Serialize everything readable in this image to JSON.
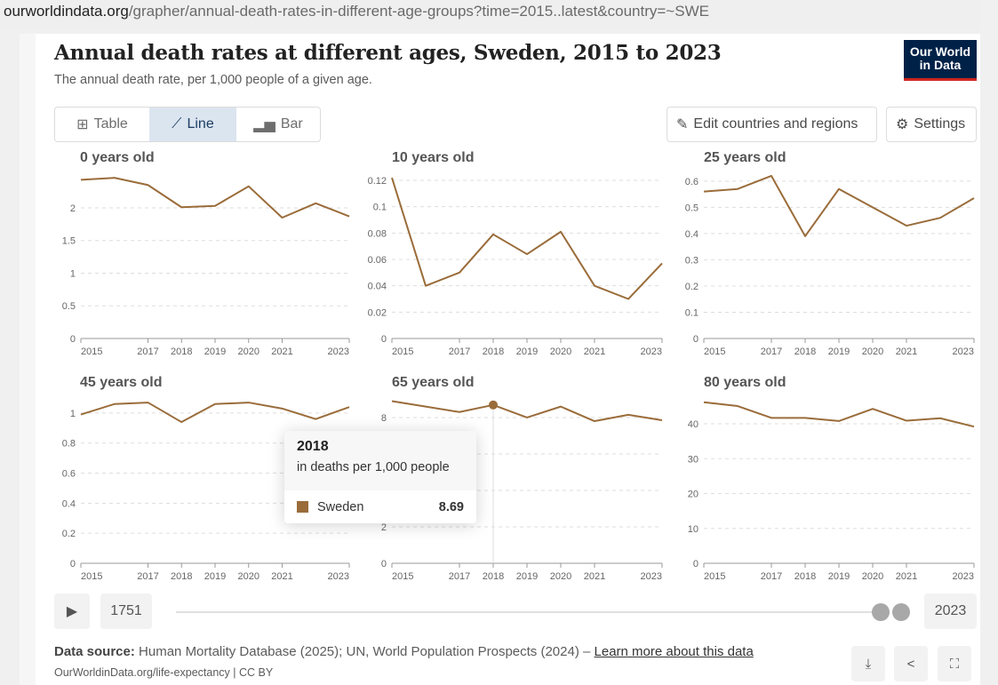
{
  "url": {
    "domain": "ourworldindata.org",
    "path": "/grapher/annual-death-rates-in-different-age-groups?time=2015..latest&country=~SWE"
  },
  "header": {
    "title": "Annual death rates at different ages, Sweden, 2015 to 2023",
    "subtitle": "The annual death rate, per 1,000 people of a given age.",
    "logo": "Our World in Data"
  },
  "toolbar": {
    "table": "Table",
    "line": "Line",
    "bar": "Bar",
    "edit": "Edit countries and regions",
    "settings": "Settings"
  },
  "colors": {
    "series": "#9a6c3a",
    "accent": "#1d3d63"
  },
  "chart_data": [
    {
      "type": "line",
      "title": "0 years old",
      "x": [
        2015,
        2016,
        2017,
        2018,
        2019,
        2020,
        2021,
        2022,
        2023
      ],
      "series": [
        {
          "name": "Sweden",
          "values": [
            2.43,
            2.46,
            2.35,
            2.01,
            2.03,
            2.33,
            1.85,
            2.07,
            1.87
          ]
        }
      ],
      "yticks": [
        "0",
        "0.5",
        "1",
        "1.5",
        "2"
      ],
      "ytick_values": [
        0,
        0.5,
        1,
        1.5,
        2
      ],
      "ylim": [
        0,
        2.53
      ]
    },
    {
      "type": "line",
      "title": "10 years old",
      "x": [
        2015,
        2016,
        2017,
        2018,
        2019,
        2020,
        2021,
        2022,
        2023
      ],
      "series": [
        {
          "name": "Sweden",
          "values": [
            0.122,
            0.04,
            0.05,
            0.079,
            0.064,
            0.081,
            0.04,
            0.03,
            0.057
          ]
        }
      ],
      "yticks": [
        "0",
        "0.02",
        "0.04",
        "0.06",
        "0.08",
        "0.1",
        "0.12"
      ],
      "ytick_values": [
        0,
        0.02,
        0.04,
        0.06,
        0.08,
        0.1,
        0.12
      ],
      "ylim": [
        0,
        0.1254
      ]
    },
    {
      "type": "line",
      "title": "25 years old",
      "x": [
        2015,
        2016,
        2017,
        2018,
        2019,
        2020,
        2021,
        2022,
        2023
      ],
      "series": [
        {
          "name": "Sweden",
          "values": [
            0.56,
            0.57,
            0.62,
            0.39,
            0.57,
            0.5,
            0.43,
            0.46,
            0.535
          ]
        }
      ],
      "yticks": [
        "0",
        "0.1",
        "0.2",
        "0.3",
        "0.4",
        "0.5",
        "0.6"
      ],
      "ytick_values": [
        0,
        0.1,
        0.2,
        0.3,
        0.4,
        0.5,
        0.6
      ],
      "ylim": [
        0,
        0.63
      ]
    },
    {
      "type": "line",
      "title": "45 years old",
      "x": [
        2015,
        2016,
        2017,
        2018,
        2019,
        2020,
        2021,
        2022,
        2023
      ],
      "series": [
        {
          "name": "Sweden",
          "values": [
            0.99,
            1.06,
            1.07,
            0.94,
            1.06,
            1.07,
            1.03,
            0.96,
            1.04
          ]
        }
      ],
      "yticks": [
        "0",
        "0.2",
        "0.4",
        "0.6",
        "0.8",
        "1"
      ],
      "ytick_values": [
        0,
        0.2,
        0.4,
        0.6,
        0.8,
        1
      ],
      "ylim": [
        0,
        1.1
      ]
    },
    {
      "type": "line",
      "title": "65 years old",
      "x": [
        2015,
        2016,
        2017,
        2018,
        2019,
        2020,
        2021,
        2022,
        2023
      ],
      "series": [
        {
          "name": "Sweden",
          "values": [
            8.9,
            8.6,
            8.3,
            8.69,
            8.0,
            8.6,
            7.8,
            8.15,
            7.85
          ]
        }
      ],
      "yticks": [
        "0",
        "2",
        "4",
        "6",
        "8"
      ],
      "ytick_values": [
        0,
        2,
        4,
        6,
        8
      ],
      "ylim": [
        0,
        9.07
      ]
    },
    {
      "type": "line",
      "title": "80 years old",
      "x": [
        2015,
        2016,
        2017,
        2018,
        2019,
        2020,
        2021,
        2022,
        2023
      ],
      "series": [
        {
          "name": "Sweden",
          "values": [
            46.2,
            45.1,
            41.7,
            41.7,
            40.8,
            44.3,
            40.9,
            41.6,
            39.2
          ]
        }
      ],
      "yticks": [
        "0",
        "10",
        "20",
        "30",
        "40"
      ],
      "ytick_values": [
        0,
        10,
        20,
        30,
        40
      ],
      "ylim": [
        0,
        47.4
      ]
    }
  ],
  "xticks": [
    "2015",
    "2017",
    "2018",
    "2019",
    "2020",
    "2021",
    "2023"
  ],
  "xtick_values": [
    2015,
    2017,
    2018,
    2019,
    2020,
    2021,
    2023
  ],
  "tooltip": {
    "year": "2018",
    "unit": "in deaths per 1,000 people",
    "entity": "Sweden",
    "value": "8.69",
    "panel": 4
  },
  "timeline": {
    "start": "1751",
    "end": "2023"
  },
  "footer": {
    "source_label": "Data source:",
    "source": " Human Mortality Database (2025); UN, World Population Prospects (2024) – ",
    "learn_more": "Learn more about this data",
    "license": "OurWorldinData.org/life-expectancy | CC BY"
  }
}
